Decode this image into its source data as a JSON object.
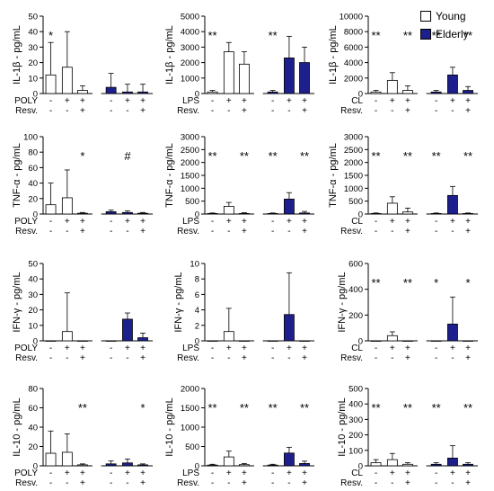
{
  "legend": {
    "entries": [
      {
        "label": "Young",
        "color": "#ffffff"
      },
      {
        "label": "Elderly",
        "color": "#1c1f8c"
      }
    ]
  },
  "colors": {
    "young_fill": "#ffffff",
    "elderly_fill": "#1c1f8c",
    "axis": "#000000"
  },
  "chart_data": [
    {
      "type": "bar",
      "ylabel": "IL-1β - pg/mL",
      "yticks": [
        0,
        10,
        20,
        30,
        40,
        50
      ],
      "ylim": [
        0,
        50
      ],
      "stim": "POLY",
      "groups": [
        "Young",
        "Elderly"
      ],
      "conditions": {
        "stim": [
          "-",
          "+",
          "+",
          "-",
          "+",
          "+"
        ],
        "resv": [
          "-",
          "-",
          "+",
          "-",
          "-",
          "+"
        ]
      },
      "values": [
        12,
        17,
        2,
        4,
        1,
        1
      ],
      "errors": [
        21,
        23,
        3,
        9,
        5,
        5
      ],
      "annotations": [
        {
          "bar": 0,
          "text": "*"
        }
      ]
    },
    {
      "type": "bar",
      "ylabel": "IL-1β - pg/mL",
      "yticks": [
        0,
        1000,
        2000,
        3000,
        4000,
        5000
      ],
      "ylim": [
        0,
        5000
      ],
      "stim": "LPS",
      "groups": [
        "Young",
        "Elderly"
      ],
      "conditions": {
        "stim": [
          "-",
          "+",
          "+",
          "-",
          "+",
          "+"
        ],
        "resv": [
          "-",
          "-",
          "+",
          "-",
          "-",
          "+"
        ]
      },
      "values": [
        100,
        2700,
        1900,
        100,
        2300,
        2000
      ],
      "errors": [
        100,
        600,
        800,
        100,
        1400,
        1000
      ],
      "annotations": [
        {
          "bar": 0,
          "text": "**"
        },
        {
          "bar": 3,
          "text": "**"
        }
      ]
    },
    {
      "type": "bar",
      "ylabel": "IL-1β - pg/mL",
      "yticks": [
        0,
        2000,
        4000,
        6000,
        8000,
        10000
      ],
      "ylim": [
        0,
        10000
      ],
      "stim": "CL",
      "groups": [
        "Young",
        "Elderly"
      ],
      "conditions": {
        "stim": [
          "-",
          "+",
          "+",
          "-",
          "+",
          "+"
        ],
        "resv": [
          "-",
          "-",
          "+",
          "-",
          "-",
          "+"
        ]
      },
      "values": [
        200,
        1700,
        400,
        200,
        2400,
        400
      ],
      "errors": [
        200,
        1000,
        600,
        200,
        1000,
        500
      ],
      "annotations": [
        {
          "bar": 0,
          "text": "**"
        },
        {
          "bar": 2,
          "text": "**"
        },
        {
          "bar": 3,
          "text": "**"
        },
        {
          "bar": 5,
          "text": "**"
        }
      ]
    },
    {
      "type": "bar",
      "ylabel": "TNF-α - pg/mL",
      "yticks": [
        0,
        20,
        40,
        60,
        80,
        100
      ],
      "ylim": [
        0,
        100
      ],
      "stim": "POLY",
      "groups": [
        "Young",
        "Elderly"
      ],
      "conditions": {
        "stim": [
          "-",
          "+",
          "+",
          "-",
          "+",
          "+"
        ],
        "resv": [
          "-",
          "-",
          "+",
          "-",
          "-",
          "+"
        ]
      },
      "values": [
        12,
        21,
        1,
        3,
        2,
        1
      ],
      "errors": [
        28,
        36,
        1,
        2,
        2,
        1
      ],
      "annotations": [
        {
          "bar": 2,
          "text": "*"
        },
        {
          "bar": 4,
          "text": "#"
        }
      ]
    },
    {
      "type": "bar",
      "ylabel": "TNF-α - pg/mL",
      "yticks": [
        0,
        500,
        1000,
        1500,
        2000,
        2500,
        3000
      ],
      "ylim": [
        0,
        3000
      ],
      "stim": "LPS",
      "groups": [
        "Young",
        "Elderly"
      ],
      "conditions": {
        "stim": [
          "-",
          "+",
          "+",
          "-",
          "+",
          "+"
        ],
        "resv": [
          "-",
          "-",
          "+",
          "-",
          "-",
          "+"
        ]
      },
      "values": [
        20,
        300,
        20,
        20,
        580,
        40
      ],
      "errors": [
        20,
        150,
        30,
        20,
        250,
        60
      ],
      "annotations": [
        {
          "bar": 0,
          "text": "**"
        },
        {
          "bar": 2,
          "text": "**"
        },
        {
          "bar": 3,
          "text": "**"
        },
        {
          "bar": 5,
          "text": "**"
        }
      ]
    },
    {
      "type": "bar",
      "ylabel": "TNF-α - pg/mL",
      "yticks": [
        0,
        500,
        1000,
        1500,
        2000,
        2500,
        3000
      ],
      "ylim": [
        0,
        3000
      ],
      "stim": "CL",
      "groups": [
        "Young",
        "Elderly"
      ],
      "conditions": {
        "stim": [
          "-",
          "+",
          "+",
          "-",
          "+",
          "+"
        ],
        "resv": [
          "-",
          "-",
          "+",
          "-",
          "-",
          "+"
        ]
      },
      "values": [
        20,
        420,
        80,
        20,
        720,
        20
      ],
      "errors": [
        20,
        250,
        150,
        20,
        350,
        20
      ],
      "annotations": [
        {
          "bar": 0,
          "text": "**"
        },
        {
          "bar": 2,
          "text": "**"
        },
        {
          "bar": 3,
          "text": "**"
        },
        {
          "bar": 5,
          "text": "**"
        }
      ]
    },
    {
      "type": "bar",
      "ylabel": "IFN-γ - pg/mL",
      "yticks": [
        0,
        10,
        20,
        30,
        40,
        50
      ],
      "ylim": [
        0,
        50
      ],
      "stim": "POLY",
      "groups": [
        "Young",
        "Elderly"
      ],
      "conditions": {
        "stim": [
          "-",
          "+",
          "+",
          "-",
          "+",
          "+"
        ],
        "resv": [
          "-",
          "-",
          "+",
          "-",
          "-",
          "+"
        ]
      },
      "values": [
        0,
        6,
        0,
        0,
        14,
        2
      ],
      "errors": [
        0,
        25,
        0,
        0,
        4,
        3
      ],
      "annotations": []
    },
    {
      "type": "bar",
      "ylabel": "IFN-γ - pg/mL",
      "yticks": [
        0,
        2,
        4,
        6,
        8,
        10
      ],
      "ylim": [
        0,
        10
      ],
      "stim": "LPS",
      "groups": [
        "Young",
        "Elderly"
      ],
      "conditions": {
        "stim": [
          "-",
          "+",
          "+",
          "-",
          "+",
          "+"
        ],
        "resv": [
          "-",
          "-",
          "+",
          "-",
          "-",
          "+"
        ]
      },
      "values": [
        0,
        1.2,
        0,
        0,
        3.4,
        0
      ],
      "errors": [
        0,
        3,
        0,
        0,
        5.4,
        0
      ],
      "annotations": []
    },
    {
      "type": "bar",
      "ylabel": "IFN-γ - pg/mL",
      "yticks": [
        0,
        200,
        400,
        600
      ],
      "ylim": [
        0,
        600
      ],
      "stim": "CL",
      "groups": [
        "Young",
        "Elderly"
      ],
      "conditions": {
        "stim": [
          "-",
          "+",
          "+",
          "-",
          "+",
          "+"
        ],
        "resv": [
          "-",
          "-",
          "+",
          "-",
          "-",
          "+"
        ]
      },
      "values": [
        0,
        40,
        0,
        0,
        130,
        0
      ],
      "errors": [
        0,
        30,
        0,
        0,
        210,
        0
      ],
      "annotations": [
        {
          "bar": 0,
          "text": "**"
        },
        {
          "bar": 2,
          "text": "**"
        },
        {
          "bar": 3,
          "text": "*"
        },
        {
          "bar": 5,
          "text": "*"
        }
      ]
    },
    {
      "type": "bar",
      "ylabel": "IL-10 - pg/mL",
      "yticks": [
        0,
        20,
        40,
        60,
        80
      ],
      "ylim": [
        0,
        80
      ],
      "stim": "POLY",
      "groups": [
        "Young",
        "Elderly"
      ],
      "conditions": {
        "stim": [
          "-",
          "+",
          "+",
          "-",
          "+",
          "+"
        ],
        "resv": [
          "-",
          "-",
          "+",
          "-",
          "-",
          "+"
        ]
      },
      "values": [
        13,
        14,
        1,
        2,
        3,
        1
      ],
      "errors": [
        23,
        19,
        1,
        3,
        4,
        1
      ],
      "annotations": [
        {
          "bar": 2,
          "text": "**"
        },
        {
          "bar": 5,
          "text": "*"
        }
      ]
    },
    {
      "type": "bar",
      "ylabel": "IL-10 - pg/mL",
      "yticks": [
        0,
        500,
        1000,
        1500,
        2000
      ],
      "ylim": [
        0,
        2000
      ],
      "stim": "LPS",
      "groups": [
        "Young",
        "Elderly"
      ],
      "conditions": {
        "stim": [
          "-",
          "+",
          "+",
          "-",
          "+",
          "+"
        ],
        "resv": [
          "-",
          "-",
          "+",
          "-",
          "-",
          "+"
        ]
      },
      "values": [
        20,
        230,
        30,
        20,
        330,
        60
      ],
      "errors": [
        20,
        150,
        30,
        20,
        150,
        60
      ],
      "annotations": [
        {
          "bar": 0,
          "text": "**"
        },
        {
          "bar": 2,
          "text": "**"
        },
        {
          "bar": 3,
          "text": "**"
        },
        {
          "bar": 5,
          "text": "**"
        }
      ]
    },
    {
      "type": "bar",
      "ylabel": "IL-10 - pg/mL",
      "yticks": [
        0,
        100,
        200,
        300,
        400,
        500
      ],
      "ylim": [
        0,
        500
      ],
      "stim": "CL",
      "groups": [
        "Young",
        "Elderly"
      ],
      "conditions": {
        "stim": [
          "-",
          "+",
          "+",
          "-",
          "+",
          "+"
        ],
        "resv": [
          "-",
          "-",
          "+",
          "-",
          "-",
          "+"
        ]
      },
      "values": [
        20,
        40,
        10,
        10,
        50,
        10
      ],
      "errors": [
        20,
        40,
        10,
        10,
        80,
        10
      ],
      "annotations": [
        {
          "bar": 0,
          "text": "**"
        },
        {
          "bar": 2,
          "text": "**"
        },
        {
          "bar": 3,
          "text": "**"
        },
        {
          "bar": 5,
          "text": "**"
        }
      ]
    }
  ],
  "row_labels": {
    "resv": "Resv."
  }
}
